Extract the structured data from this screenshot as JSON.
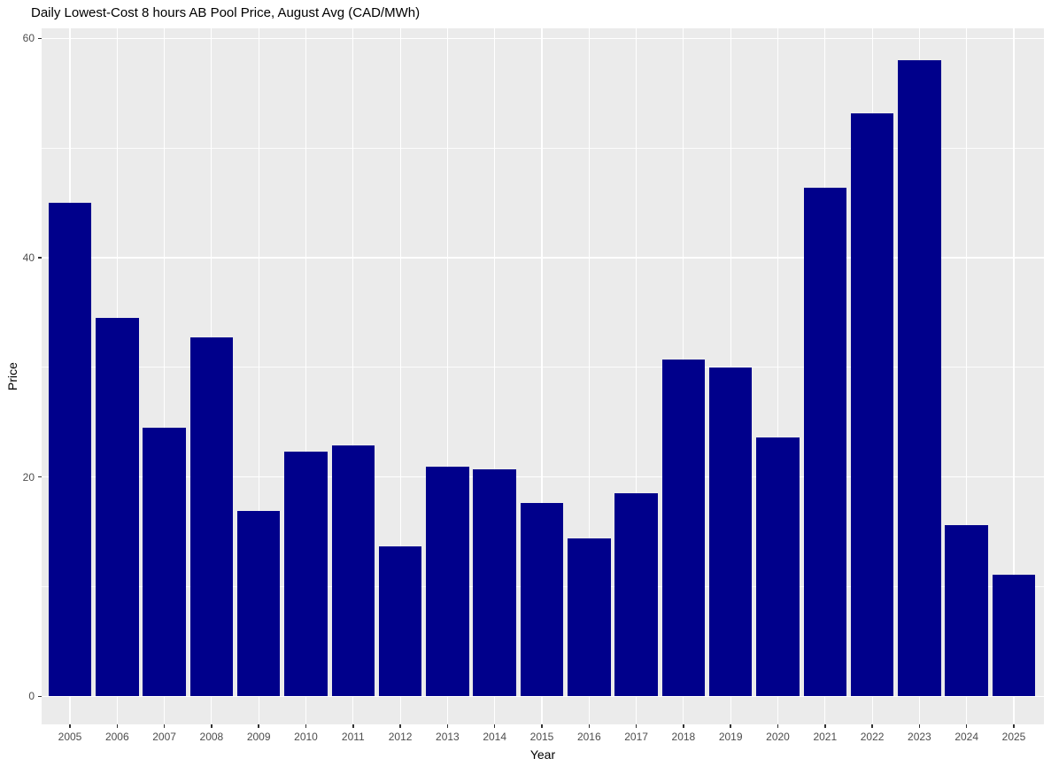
{
  "chart_data": {
    "type": "bar",
    "title": "Daily Lowest-Cost 8 hours AB Pool Price, August Avg (CAD/MWh)",
    "xlabel": "Year",
    "ylabel": "Price",
    "categories": [
      "2005",
      "2006",
      "2007",
      "2008",
      "2009",
      "2010",
      "2011",
      "2012",
      "2013",
      "2014",
      "2015",
      "2016",
      "2017",
      "2018",
      "2019",
      "2020",
      "2021",
      "2022",
      "2023",
      "2024",
      "2025"
    ],
    "values": [
      45.0,
      34.5,
      24.5,
      32.7,
      16.9,
      22.3,
      22.9,
      13.7,
      20.9,
      20.7,
      17.6,
      14.4,
      18.5,
      30.7,
      30.0,
      23.6,
      46.4,
      53.2,
      58.0,
      15.6,
      11.1
    ],
    "y_major_ticks": [
      0,
      20,
      40,
      60
    ],
    "y_minor_ticks": [
      10,
      30,
      50
    ],
    "ylim": [
      -2.6,
      60.9
    ],
    "grid": true,
    "legend": "none",
    "colors": {
      "bar": "#00008B",
      "panel_background": "#EBEBEB",
      "gridline": "#FFFFFF",
      "tick_label": "#4D4D4D",
      "axis_title": "#000000",
      "title": "#000000",
      "tick_mark": "#333333",
      "figure_background": "#FFFFFF"
    }
  }
}
